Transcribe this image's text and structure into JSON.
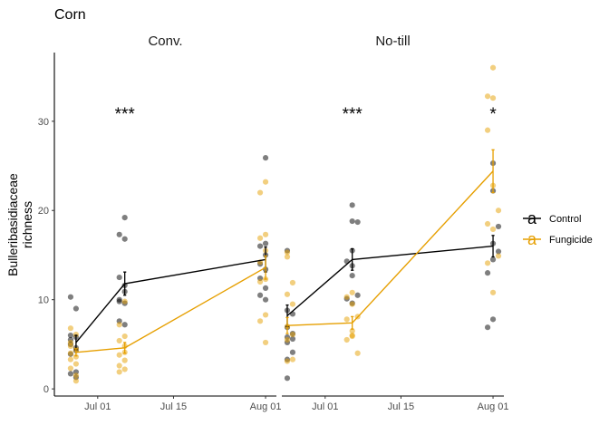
{
  "chart_data": {
    "type": "scatter",
    "title": "Corn",
    "ylabel": "Bulleribasidiaceae\nrichness",
    "ylim": [
      -0.8,
      37.7
    ],
    "yticks": [
      0,
      10,
      20,
      30
    ],
    "xticks": [
      "Jul 01",
      "Jul 15",
      "Aug 01"
    ],
    "xlim": [
      "2021-06-23",
      "2021-08-03"
    ],
    "legend_position": "right",
    "grid": false,
    "colors": {
      "Control": "#000000",
      "Fungicide": "#E69F00"
    },
    "legend": [
      {
        "name": "Control",
        "key": "a",
        "color": "#000000"
      },
      {
        "name": "Fungicide",
        "key": "a",
        "color": "#E69F00"
      }
    ],
    "panels": [
      {
        "label": "Conv.",
        "significance": [
          {
            "date": "2021-07-06",
            "label": "***"
          }
        ],
        "series": [
          {
            "name": "Control",
            "means": [
              {
                "date": "2021-06-27",
                "mean": 5.2,
                "se": 0.8
              },
              {
                "date": "2021-07-06",
                "mean": 11.8,
                "se": 1.3
              },
              {
                "date": "2021-08-01",
                "mean": 14.5,
                "se": 1.4
              }
            ],
            "points": [
              {
                "date": "2021-06-26",
                "y": 10.3
              },
              {
                "date": "2021-06-27",
                "y": 9.0
              },
              {
                "date": "2021-06-26",
                "y": 6.0
              },
              {
                "date": "2021-06-27",
                "y": 5.8
              },
              {
                "date": "2021-06-26",
                "y": 5.0
              },
              {
                "date": "2021-06-27",
                "y": 4.6
              },
              {
                "date": "2021-06-26",
                "y": 3.9
              },
              {
                "date": "2021-06-27",
                "y": 1.9
              },
              {
                "date": "2021-06-26",
                "y": 1.7
              },
              {
                "date": "2021-06-27",
                "y": 1.3
              },
              {
                "date": "2021-06-26",
                "y": 5.5
              },
              {
                "date": "2021-06-27",
                "y": 4.3
              },
              {
                "date": "2021-07-06",
                "y": 19.2
              },
              {
                "date": "2021-07-05",
                "y": 17.3
              },
              {
                "date": "2021-07-06",
                "y": 16.8
              },
              {
                "date": "2021-07-05",
                "y": 12.5
              },
              {
                "date": "2021-07-06",
                "y": 11.6
              },
              {
                "date": "2021-07-06",
                "y": 10.9
              },
              {
                "date": "2021-07-05",
                "y": 10.0
              },
              {
                "date": "2021-07-06",
                "y": 9.6
              },
              {
                "date": "2021-07-05",
                "y": 7.6
              },
              {
                "date": "2021-07-06",
                "y": 7.2
              },
              {
                "date": "2021-07-05",
                "y": 9.8
              },
              {
                "date": "2021-08-01",
                "y": 25.9
              },
              {
                "date": "2021-08-01",
                "y": 16.3
              },
              {
                "date": "2021-07-31",
                "y": 16.0
              },
              {
                "date": "2021-08-01",
                "y": 15.0
              },
              {
                "date": "2021-07-31",
                "y": 14.0
              },
              {
                "date": "2021-08-01",
                "y": 13.4
              },
              {
                "date": "2021-07-31",
                "y": 12.4
              },
              {
                "date": "2021-08-01",
                "y": 11.3
              },
              {
                "date": "2021-07-31",
                "y": 10.5
              },
              {
                "date": "2021-08-01",
                "y": 10.0
              }
            ]
          },
          {
            "name": "Fungicide",
            "means": [
              {
                "date": "2021-06-27",
                "mean": 4.1,
                "se": 0.4
              },
              {
                "date": "2021-07-06",
                "mean": 4.6,
                "se": 0.6
              },
              {
                "date": "2021-08-01",
                "mean": 13.6,
                "se": 1.3
              }
            ],
            "points": [
              {
                "date": "2021-06-26",
                "y": 6.8
              },
              {
                "date": "2021-06-27",
                "y": 6.1
              },
              {
                "date": "2021-06-26",
                "y": 5.2
              },
              {
                "date": "2021-06-27",
                "y": 4.4
              },
              {
                "date": "2021-06-26",
                "y": 4.0
              },
              {
                "date": "2021-06-27",
                "y": 3.6
              },
              {
                "date": "2021-06-26",
                "y": 3.3
              },
              {
                "date": "2021-06-27",
                "y": 2.8
              },
              {
                "date": "2021-06-26",
                "y": 2.3
              },
              {
                "date": "2021-06-27",
                "y": 1.5
              },
              {
                "date": "2021-06-27",
                "y": 0.9
              },
              {
                "date": "2021-06-26",
                "y": 4.8
              },
              {
                "date": "2021-07-06",
                "y": 9.8
              },
              {
                "date": "2021-07-05",
                "y": 7.2
              },
              {
                "date": "2021-07-06",
                "y": 5.9
              },
              {
                "date": "2021-07-05",
                "y": 5.4
              },
              {
                "date": "2021-07-06",
                "y": 4.8
              },
              {
                "date": "2021-07-05",
                "y": 3.8
              },
              {
                "date": "2021-07-06",
                "y": 3.2
              },
              {
                "date": "2021-07-05",
                "y": 2.6
              },
              {
                "date": "2021-07-06",
                "y": 2.2
              },
              {
                "date": "2021-07-05",
                "y": 1.9
              },
              {
                "date": "2021-07-06",
                "y": 4.1
              },
              {
                "date": "2021-08-01",
                "y": 23.2
              },
              {
                "date": "2021-07-31",
                "y": 22.0
              },
              {
                "date": "2021-08-01",
                "y": 17.3
              },
              {
                "date": "2021-07-31",
                "y": 16.9
              },
              {
                "date": "2021-08-01",
                "y": 15.5
              },
              {
                "date": "2021-07-31",
                "y": 14.2
              },
              {
                "date": "2021-08-01",
                "y": 12.3
              },
              {
                "date": "2021-07-31",
                "y": 12.0
              },
              {
                "date": "2021-08-01",
                "y": 8.3
              },
              {
                "date": "2021-07-31",
                "y": 7.6
              },
              {
                "date": "2021-08-01",
                "y": 5.2
              }
            ]
          }
        ]
      },
      {
        "label": "No-till",
        "significance": [
          {
            "date": "2021-07-06",
            "label": "***"
          },
          {
            "date": "2021-08-01",
            "label": "*"
          }
        ],
        "series": [
          {
            "name": "Control",
            "means": [
              {
                "date": "2021-06-24",
                "mean": 8.2,
                "se": 1.2
              },
              {
                "date": "2021-07-06",
                "mean": 14.5,
                "se": 1.2
              },
              {
                "date": "2021-08-01",
                "mean": 16.0,
                "se": 1.2
              }
            ],
            "points": [
              {
                "date": "2021-06-24",
                "y": 15.5
              },
              {
                "date": "2021-06-24",
                "y": 8.8
              },
              {
                "date": "2021-06-25",
                "y": 8.4
              },
              {
                "date": "2021-06-24",
                "y": 6.9
              },
              {
                "date": "2021-06-25",
                "y": 6.2
              },
              {
                "date": "2021-06-24",
                "y": 5.8
              },
              {
                "date": "2021-06-25",
                "y": 5.6
              },
              {
                "date": "2021-06-24",
                "y": 5.2
              },
              {
                "date": "2021-06-25",
                "y": 4.1
              },
              {
                "date": "2021-06-24",
                "y": 3.3
              },
              {
                "date": "2021-06-24",
                "y": 1.2
              },
              {
                "date": "2021-07-06",
                "y": 20.6
              },
              {
                "date": "2021-07-06",
                "y": 18.8
              },
              {
                "date": "2021-07-07",
                "y": 18.7
              },
              {
                "date": "2021-07-06",
                "y": 15.5
              },
              {
                "date": "2021-07-05",
                "y": 14.3
              },
              {
                "date": "2021-07-06",
                "y": 13.8
              },
              {
                "date": "2021-07-06",
                "y": 12.7
              },
              {
                "date": "2021-07-07",
                "y": 10.5
              },
              {
                "date": "2021-07-05",
                "y": 10.1
              },
              {
                "date": "2021-07-06",
                "y": 9.6
              },
              {
                "date": "2021-08-01",
                "y": 25.3
              },
              {
                "date": "2021-08-01",
                "y": 22.2
              },
              {
                "date": "2021-08-02",
                "y": 18.2
              },
              {
                "date": "2021-08-01",
                "y": 16.3
              },
              {
                "date": "2021-08-02",
                "y": 15.4
              },
              {
                "date": "2021-08-01",
                "y": 14.5
              },
              {
                "date": "2021-07-31",
                "y": 13.0
              },
              {
                "date": "2021-08-01",
                "y": 7.8
              },
              {
                "date": "2021-07-31",
                "y": 6.9
              }
            ]
          },
          {
            "name": "Fungicide",
            "means": [
              {
                "date": "2021-06-24",
                "mean": 7.1,
                "se": 0.9
              },
              {
                "date": "2021-07-06",
                "mean": 7.4,
                "se": 0.7
              },
              {
                "date": "2021-08-01",
                "mean": 24.4,
                "se": 2.4
              }
            ],
            "points": [
              {
                "date": "2021-06-24",
                "y": 15.3
              },
              {
                "date": "2021-06-24",
                "y": 14.8
              },
              {
                "date": "2021-06-25",
                "y": 11.9
              },
              {
                "date": "2021-06-24",
                "y": 10.6
              },
              {
                "date": "2021-06-25",
                "y": 9.5
              },
              {
                "date": "2021-06-24",
                "y": 7.0
              },
              {
                "date": "2021-06-25",
                "y": 6.1
              },
              {
                "date": "2021-06-24",
                "y": 5.5
              },
              {
                "date": "2021-06-25",
                "y": 3.3
              },
              {
                "date": "2021-06-24",
                "y": 3.1
              },
              {
                "date": "2021-07-06",
                "y": 10.8
              },
              {
                "date": "2021-07-05",
                "y": 10.3
              },
              {
                "date": "2021-07-06",
                "y": 9.5
              },
              {
                "date": "2021-07-07",
                "y": 8.1
              },
              {
                "date": "2021-07-05",
                "y": 7.8
              },
              {
                "date": "2021-07-06",
                "y": 6.5
              },
              {
                "date": "2021-07-06",
                "y": 5.9
              },
              {
                "date": "2021-07-05",
                "y": 5.5
              },
              {
                "date": "2021-07-07",
                "y": 4.0
              },
              {
                "date": "2021-07-06",
                "y": 6.0
              },
              {
                "date": "2021-08-01",
                "y": 36.0
              },
              {
                "date": "2021-07-31",
                "y": 32.8
              },
              {
                "date": "2021-08-01",
                "y": 32.6
              },
              {
                "date": "2021-07-31",
                "y": 29.0
              },
              {
                "date": "2021-08-01",
                "y": 22.8
              },
              {
                "date": "2021-08-02",
                "y": 20.0
              },
              {
                "date": "2021-07-31",
                "y": 18.5
              },
              {
                "date": "2021-08-01",
                "y": 17.9
              },
              {
                "date": "2021-08-02",
                "y": 14.9
              },
              {
                "date": "2021-07-31",
                "y": 14.1
              },
              {
                "date": "2021-08-01",
                "y": 10.8
              }
            ]
          }
        ]
      }
    ]
  }
}
